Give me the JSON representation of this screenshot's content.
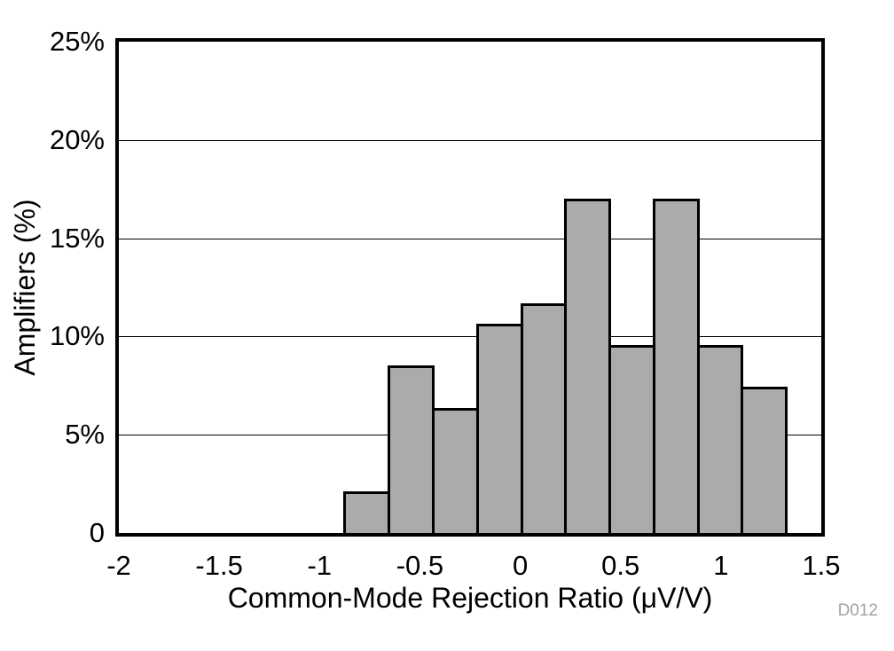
{
  "figure": {
    "background": "#FFFFFF",
    "id_label": "D012",
    "id_label_color": "#A3A3A3"
  },
  "chart_data": {
    "type": "bar",
    "subtype": "histogram",
    "title": "",
    "xlabel": "Common-Mode Rejection Ratio (μV/V)",
    "ylabel": "Amplifiers (%)",
    "xlim": [
      -2,
      1.5
    ],
    "ylim": [
      0,
      25
    ],
    "x_ticks": [
      -2,
      -1.5,
      -1,
      -0.5,
      0,
      0.5,
      1,
      1.5
    ],
    "x_tick_labels": [
      "-2",
      "-1.5",
      "-1",
      "-0.5",
      "0",
      "0.5",
      "1",
      "1.5"
    ],
    "y_ticks": [
      0,
      5,
      10,
      15,
      20,
      25
    ],
    "y_tick_labels": [
      "0",
      "5%",
      "10%",
      "15%",
      "20%",
      "25%"
    ],
    "gridlines_y": [
      5,
      10,
      15,
      20
    ],
    "grid": "horizontal",
    "legend_position": "none",
    "bin_edges": [
      -0.88,
      -0.66,
      -0.44,
      -0.22,
      0,
      0.22,
      0.44,
      0.66,
      0.88,
      1.1,
      1.32
    ],
    "values_percent": [
      2.13,
      8.51,
      6.38,
      10.64,
      11.7,
      17.02,
      9.57,
      17.02,
      9.57,
      7.45
    ],
    "bar_fill": "#ABABAB",
    "bar_border": "#000000"
  }
}
